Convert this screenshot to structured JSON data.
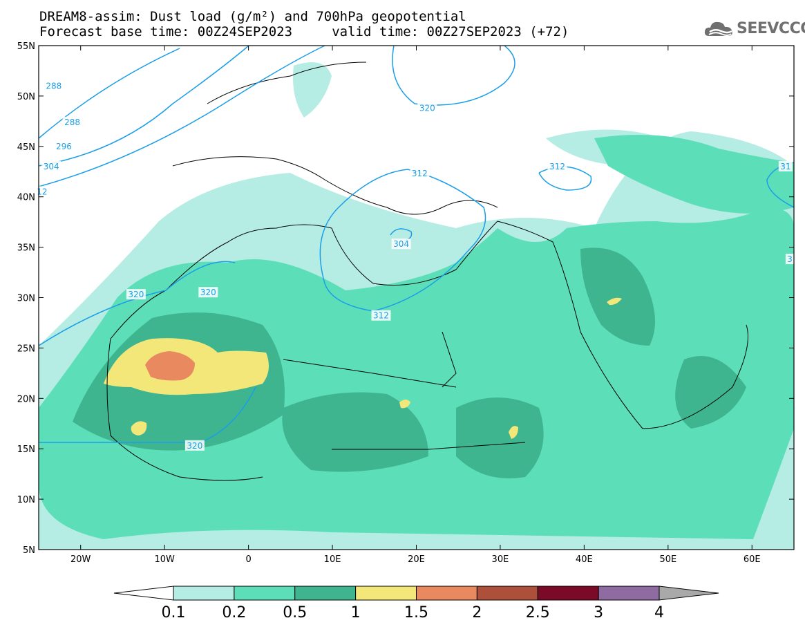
{
  "title": {
    "line1": "DREAM8-assim: Dust load (g/m²) and 700hPa geopotential",
    "line2": "Forecast base time: 00Z24SEP2023     valid time: 00Z27SEP2023 (+72)"
  },
  "logo": {
    "text": "SEEVCCC",
    "icon": "cloud-icon"
  },
  "axes": {
    "lon_range": [
      -25,
      65
    ],
    "lat_range": [
      5,
      55
    ],
    "lon_ticks": [
      {
        "value": -20,
        "label": "20W"
      },
      {
        "value": -10,
        "label": "10W"
      },
      {
        "value": 0,
        "label": "0"
      },
      {
        "value": 10,
        "label": "10E"
      },
      {
        "value": 20,
        "label": "20E"
      },
      {
        "value": 30,
        "label": "30E"
      },
      {
        "value": 40,
        "label": "40E"
      },
      {
        "value": 50,
        "label": "50E"
      },
      {
        "value": 60,
        "label": "60E"
      }
    ],
    "lat_ticks": [
      {
        "value": 55,
        "label": "55N"
      },
      {
        "value": 50,
        "label": "50N"
      },
      {
        "value": 45,
        "label": "45N"
      },
      {
        "value": 40,
        "label": "40N"
      },
      {
        "value": 35,
        "label": "35N"
      },
      {
        "value": 30,
        "label": "30N"
      },
      {
        "value": 25,
        "label": "25N"
      },
      {
        "value": 20,
        "label": "20N"
      },
      {
        "value": 15,
        "label": "15N"
      },
      {
        "value": 10,
        "label": "10N"
      },
      {
        "value": 5,
        "label": "5N"
      }
    ]
  },
  "contour_labels": [
    {
      "lon": -23.2,
      "lat": 51.0,
      "label": "288"
    },
    {
      "lon": -21.0,
      "lat": 47.4,
      "label": "288"
    },
    {
      "lon": -22.0,
      "lat": 45.0,
      "label": "296"
    },
    {
      "lon": -23.5,
      "lat": 43.0,
      "label": "304"
    },
    {
      "lon": -24.6,
      "lat": 40.5,
      "label": "12"
    },
    {
      "lon": 21.3,
      "lat": 48.8,
      "label": "320"
    },
    {
      "lon": 20.4,
      "lat": 42.3,
      "label": "312"
    },
    {
      "lon": 36.8,
      "lat": 43.0,
      "label": "312"
    },
    {
      "lon": 64.0,
      "lat": 43.0,
      "label": "31"
    },
    {
      "lon": 18.2,
      "lat": 35.3,
      "label": "304"
    },
    {
      "lon": -13.4,
      "lat": 30.3,
      "label": "320"
    },
    {
      "lon": -4.8,
      "lat": 30.5,
      "label": "320"
    },
    {
      "lon": 15.8,
      "lat": 28.2,
      "label": "312"
    },
    {
      "lon": -6.4,
      "lat": 15.3,
      "label": "320"
    },
    {
      "lon": 64.5,
      "lat": 33.8,
      "label": "3"
    }
  ],
  "colorbar": {
    "colors": [
      "#ffffff",
      "#b5ece3",
      "#5cdfb8",
      "#3fb58f",
      "#f4e77a",
      "#e8895f",
      "#ac4f3b",
      "#7a0a26",
      "#8e6ba0",
      "#a9a9a9"
    ],
    "labels": [
      "0.1",
      "0.2",
      "0.5",
      "1",
      "1.5",
      "2",
      "2.5",
      "3",
      "4"
    ]
  }
}
